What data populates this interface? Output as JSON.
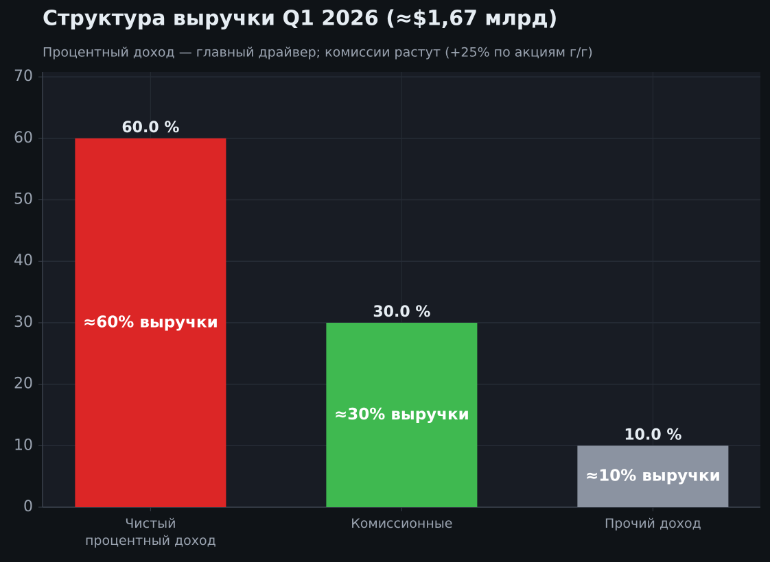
{
  "chart_data": {
    "type": "bar",
    "title": "Структура выручки Q1 2026 (≈$1,67 млрд)",
    "subtitle": "Процентный доход — главный драйвер; комиссии растут (+25% по акциям г/г)",
    "categories": [
      "Чистый\nпроцентный доход",
      "Комиссионные",
      "Прочий доход"
    ],
    "values": [
      60.0,
      30.0,
      10.0
    ],
    "value_labels": [
      "60.0 %",
      "30.0 %",
      "10.0 %"
    ],
    "inner_labels": [
      "≈60% выручки",
      "≈30% выручки",
      "≈10% выручки"
    ],
    "colors": [
      "#dc2626",
      "#3fb950",
      "#8b93a1"
    ],
    "ylim": [
      0,
      70.8
    ],
    "yticks": [
      0,
      10,
      20,
      30,
      40,
      50,
      60,
      70
    ],
    "grid": true
  }
}
